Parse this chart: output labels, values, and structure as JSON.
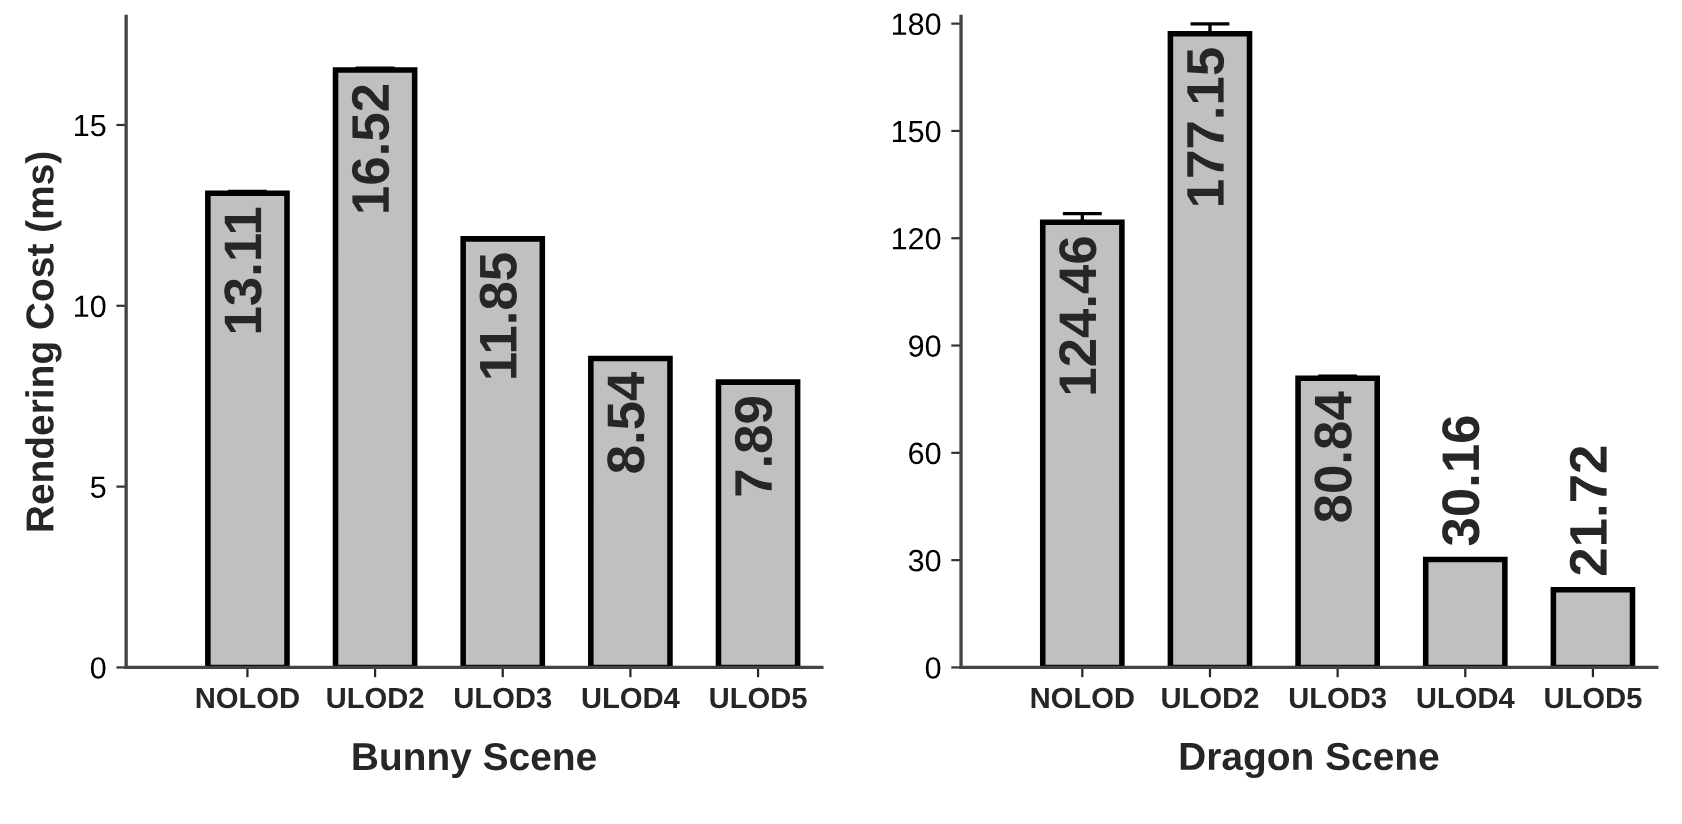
{
  "chart_data": [
    {
      "type": "bar",
      "xlabel": "Bunny Scene",
      "ylabel": "Rendering Cost (ms)",
      "categories": [
        "NOLOD",
        "ULOD2",
        "ULOD3",
        "ULOD4",
        "ULOD5"
      ],
      "values": [
        13.11,
        16.52,
        11.85,
        8.54,
        7.89
      ],
      "errors": [
        0.05,
        0.05,
        null,
        null,
        null
      ],
      "color": "#c0c0c0",
      "ylim": [
        0,
        18
      ],
      "yticks": [
        0,
        5,
        10,
        15
      ],
      "data_labels": true,
      "grid": false
    },
    {
      "type": "bar",
      "xlabel": "Dragon Scene",
      "categories": [
        "NOLOD",
        "ULOD2",
        "ULOD3",
        "ULOD4",
        "ULOD5"
      ],
      "values": [
        124.46,
        177.15,
        80.84,
        30.16,
        21.72
      ],
      "errors": [
        2.4,
        2.8,
        0.6,
        null,
        null
      ],
      "color": "#c0c0c0",
      "ylim": [
        0,
        182
      ],
      "yticks": [
        0,
        30,
        60,
        90,
        120,
        150,
        180
      ],
      "data_labels": true,
      "grid": false
    }
  ]
}
